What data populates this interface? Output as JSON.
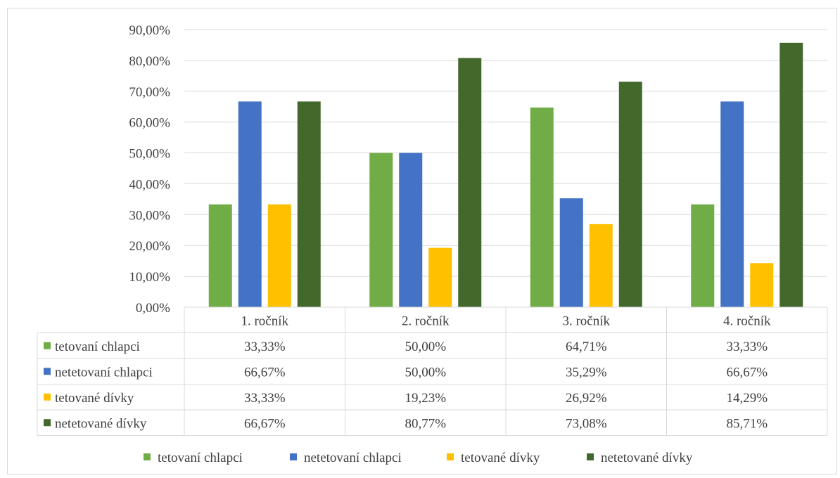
{
  "chart_data": {
    "type": "bar",
    "categories": [
      "1. ročník",
      "2. ročník",
      "3. ročník",
      "4. ročník"
    ],
    "series": [
      {
        "name": "tetovaní chlapci",
        "color": "#70ad47",
        "values": [
          33.33,
          50.0,
          64.71,
          33.33
        ],
        "labels": [
          "33,33%",
          "50,00%",
          "64,71%",
          "33,33%"
        ]
      },
      {
        "name": "netetovaní chlapci",
        "color": "#4472c4",
        "values": [
          66.67,
          50.0,
          35.29,
          66.67
        ],
        "labels": [
          "66,67%",
          "50,00%",
          "35,29%",
          "66,67%"
        ]
      },
      {
        "name": "tetované dívky",
        "color": "#ffc000",
        "values": [
          33.33,
          19.23,
          26.92,
          14.29
        ],
        "labels": [
          "33,33%",
          "19,23%",
          "26,92%",
          "14,29%"
        ]
      },
      {
        "name": "netetované dívky",
        "color": "#43682b",
        "values": [
          66.67,
          80.77,
          73.08,
          85.71
        ],
        "labels": [
          "66,67%",
          "80,77%",
          "73,08%",
          "85,71%"
        ]
      }
    ],
    "yticks": [
      "0,00%",
      "10,00%",
      "20,00%",
      "30,00%",
      "40,00%",
      "50,00%",
      "60,00%",
      "70,00%",
      "80,00%",
      "90,00%"
    ],
    "ylim": [
      0,
      90
    ],
    "grid": true,
    "data_table": true,
    "legend_position": "bottom"
  }
}
